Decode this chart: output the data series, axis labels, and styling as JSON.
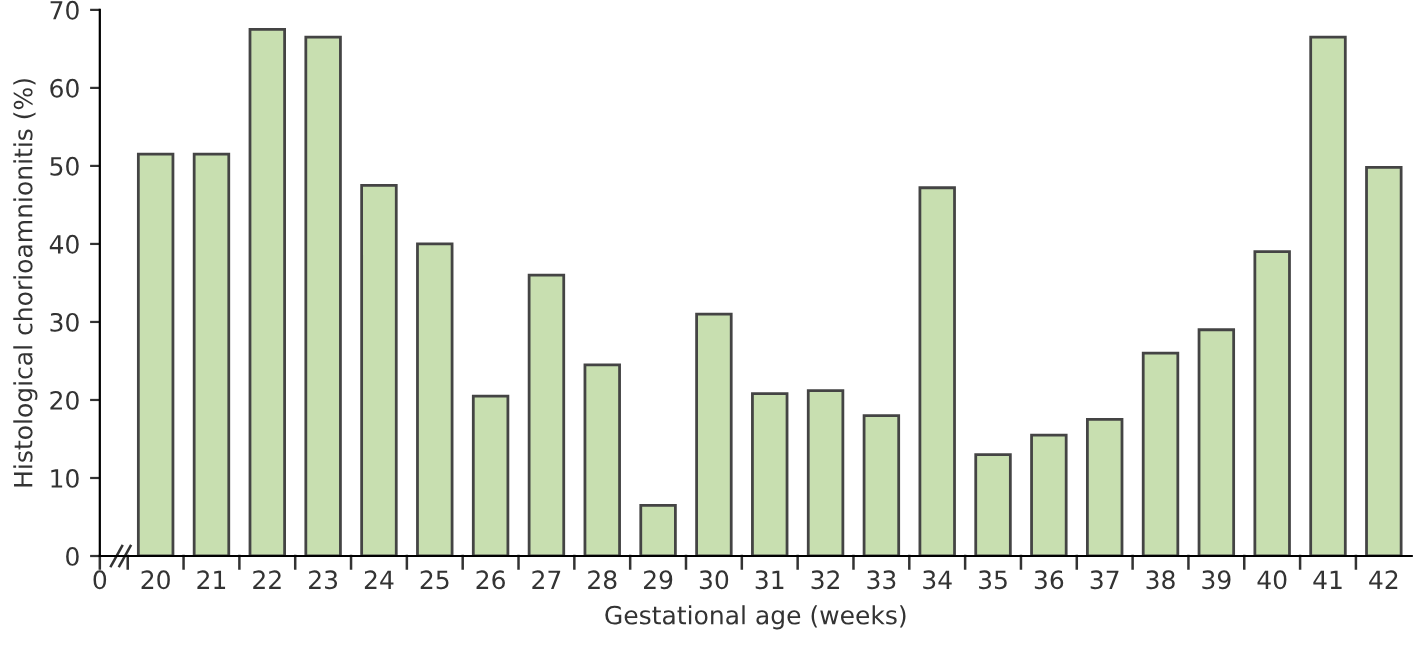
{
  "chart_data": {
    "type": "bar",
    "xlabel": "Gestational age (weeks)",
    "ylabel": "Histological chorioamnionitis (%)",
    "categories": [
      "0",
      "20",
      "21",
      "22",
      "23",
      "24",
      "25",
      "26",
      "27",
      "28",
      "29",
      "30",
      "31",
      "32",
      "33",
      "34",
      "35",
      "36",
      "37",
      "38",
      "39",
      "40",
      "41",
      "42"
    ],
    "values": [
      null,
      51.5,
      51.5,
      67.5,
      66.5,
      47.5,
      40,
      20.5,
      36,
      24.5,
      6.5,
      31,
      20.8,
      21.2,
      18,
      47.2,
      13,
      15.5,
      17.5,
      26,
      29,
      39,
      66.5,
      49.8
    ],
    "color": "#c8dfb0",
    "ylim": [
      0,
      70
    ],
    "yticks": [
      0,
      10,
      20,
      30,
      40,
      50,
      60,
      70
    ],
    "grid": false,
    "legend": false
  }
}
